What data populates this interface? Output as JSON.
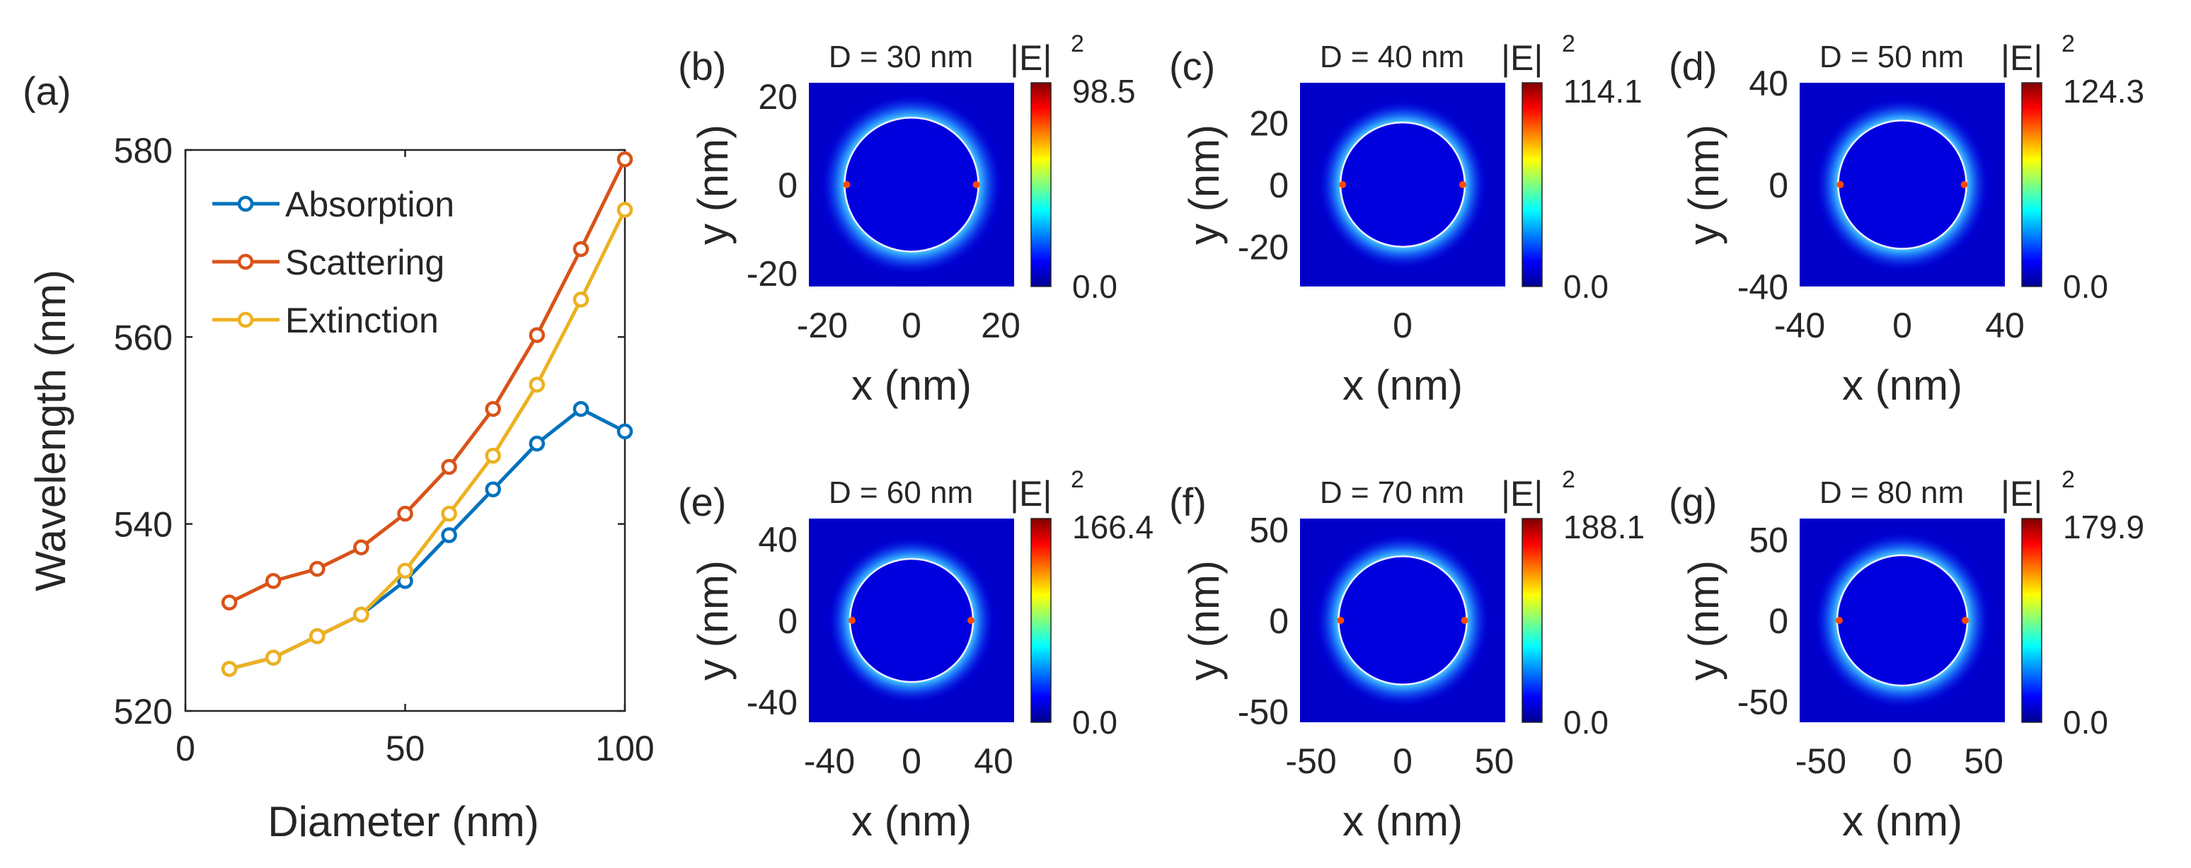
{
  "chart_data": [
    {
      "type": "line",
      "panel_label": "(a)",
      "xlabel": "Diameter (nm)",
      "ylabel": "Wavelength (nm)",
      "xlim": [
        0,
        100
      ],
      "ylim": [
        520,
        580
      ],
      "xticks": [
        "0",
        "50",
        "100"
      ],
      "yticks": [
        "520",
        "540",
        "560",
        "580"
      ],
      "legend_position": "top-left",
      "x": [
        10,
        20,
        30,
        40,
        50,
        60,
        70,
        80,
        90,
        100
      ],
      "series": [
        {
          "name": "Absorption",
          "color": "#0072BD",
          "values": [
            524.5,
            525.7,
            528.0,
            530.3,
            533.9,
            538.8,
            543.7,
            548.6,
            552.3,
            549.9
          ]
        },
        {
          "name": "Scattering",
          "color": "#D95319",
          "values": [
            531.6,
            533.9,
            535.2,
            537.5,
            541.1,
            546.1,
            552.3,
            560.2,
            569.4,
            579.0
          ]
        },
        {
          "name": "Extinction",
          "color": "#EDB120",
          "values": [
            524.5,
            525.7,
            528.0,
            530.3,
            535.0,
            541.1,
            547.3,
            554.9,
            564.0,
            573.6
          ]
        }
      ]
    },
    {
      "type": "heatmap",
      "panel_label": "(b)",
      "title": "D = 30 nm",
      "xlabel": "x (nm)",
      "ylabel": "y (nm)",
      "xlim": [
        -23,
        23
      ],
      "ylim": [
        -23,
        23
      ],
      "xticks": [
        "-20",
        "0",
        "20"
      ],
      "yticks": [
        "20",
        "0",
        "-20"
      ],
      "diameter": 30,
      "colorbar": {
        "symbol": "|E|",
        "superscript": "2",
        "max": "98.5",
        "min": "0.0"
      }
    },
    {
      "type": "heatmap",
      "panel_label": "(c)",
      "title": "D = 40 nm",
      "xlabel": "x (nm)",
      "ylabel": "y (nm)",
      "xlim": [
        -33,
        33
      ],
      "ylim": [
        -33,
        33
      ],
      "xticks": [
        "0"
      ],
      "yticks": [
        "20",
        "0",
        "-20"
      ],
      "diameter": 40,
      "colorbar": {
        "symbol": "|E|",
        "superscript": "2",
        "max": "114.1",
        "min": "0.0"
      }
    },
    {
      "type": "heatmap",
      "panel_label": "(d)",
      "title": "D = 50 nm",
      "xlabel": "x (nm)",
      "ylabel": "y (nm)",
      "xlim": [
        -40,
        40
      ],
      "ylim": [
        -40,
        40
      ],
      "xticks": [
        "-40",
        "0",
        "40"
      ],
      "yticks": [
        "40",
        "0",
        "-40"
      ],
      "diameter": 50,
      "colorbar": {
        "symbol": "|E|",
        "superscript": "2",
        "max": "124.3",
        "min": "0.0"
      }
    },
    {
      "type": "heatmap",
      "panel_label": "(e)",
      "title": "D = 60 nm",
      "xlabel": "x (nm)",
      "ylabel": "y (nm)",
      "xlim": [
        -50,
        50
      ],
      "ylim": [
        -50,
        50
      ],
      "xticks": [
        "-40",
        "0",
        "40"
      ],
      "yticks": [
        "40",
        "0",
        "-40"
      ],
      "diameter": 60,
      "colorbar": {
        "symbol": "|E|",
        "superscript": "2",
        "max": "166.4",
        "min": "0.0"
      }
    },
    {
      "type": "heatmap",
      "panel_label": "(f)",
      "title": "D = 70 nm",
      "xlabel": "x (nm)",
      "ylabel": "y (nm)",
      "xlim": [
        -56,
        56
      ],
      "ylim": [
        -56,
        56
      ],
      "xticks": [
        "-50",
        "0",
        "50"
      ],
      "yticks": [
        "50",
        "0",
        "-50"
      ],
      "diameter": 70,
      "colorbar": {
        "symbol": "|E|",
        "superscript": "2",
        "max": "188.1",
        "min": "0.0"
      }
    },
    {
      "type": "heatmap",
      "panel_label": "(g)",
      "title": "D = 80 nm",
      "xlabel": "x (nm)",
      "ylabel": "y (nm)",
      "xlim": [
        -63,
        63
      ],
      "ylim": [
        -63,
        63
      ],
      "xticks": [
        "-50",
        "0",
        "50"
      ],
      "yticks": [
        "50",
        "0",
        "-50"
      ],
      "diameter": 80,
      "colorbar": {
        "symbol": "|E|",
        "superscript": "2",
        "max": "179.9",
        "min": "0.0"
      }
    }
  ]
}
